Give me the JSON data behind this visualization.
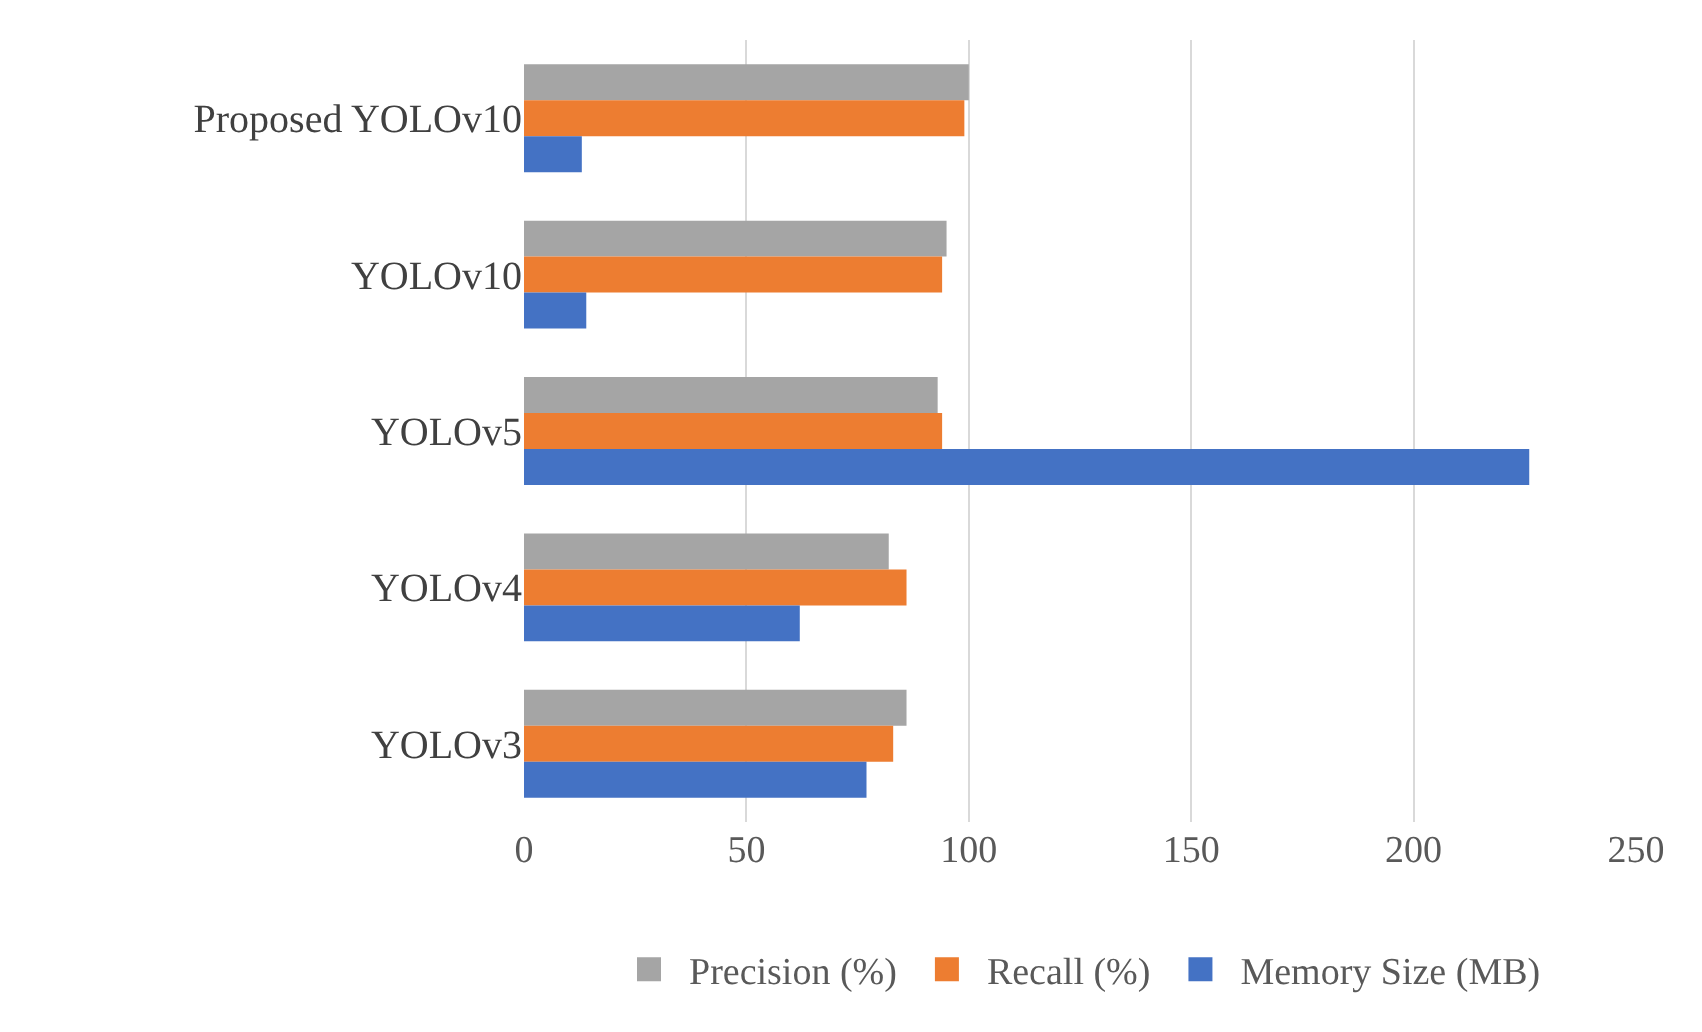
{
  "chart_data": {
    "type": "bar",
    "orientation": "horizontal",
    "categories": [
      "Proposed YOLOv10",
      "YOLOv10",
      "YOLOv5",
      "YOLOv4",
      "YOLOv3"
    ],
    "series": [
      {
        "name": "Precision (%)",
        "color": "#a5a5a5",
        "values": [
          100,
          95,
          93,
          82,
          86
        ]
      },
      {
        "name": "Recall (%)",
        "color": "#ed7d31",
        "values": [
          99,
          94,
          94,
          86,
          83
        ]
      },
      {
        "name": "Memory Size (MB)",
        "color": "#4472c4",
        "values": [
          13,
          14,
          226,
          62,
          77
        ]
      }
    ],
    "xlim": [
      0,
      250
    ],
    "xticks": [
      0,
      50,
      100,
      150,
      200,
      250
    ],
    "grid": "x",
    "legend": "bottom"
  }
}
